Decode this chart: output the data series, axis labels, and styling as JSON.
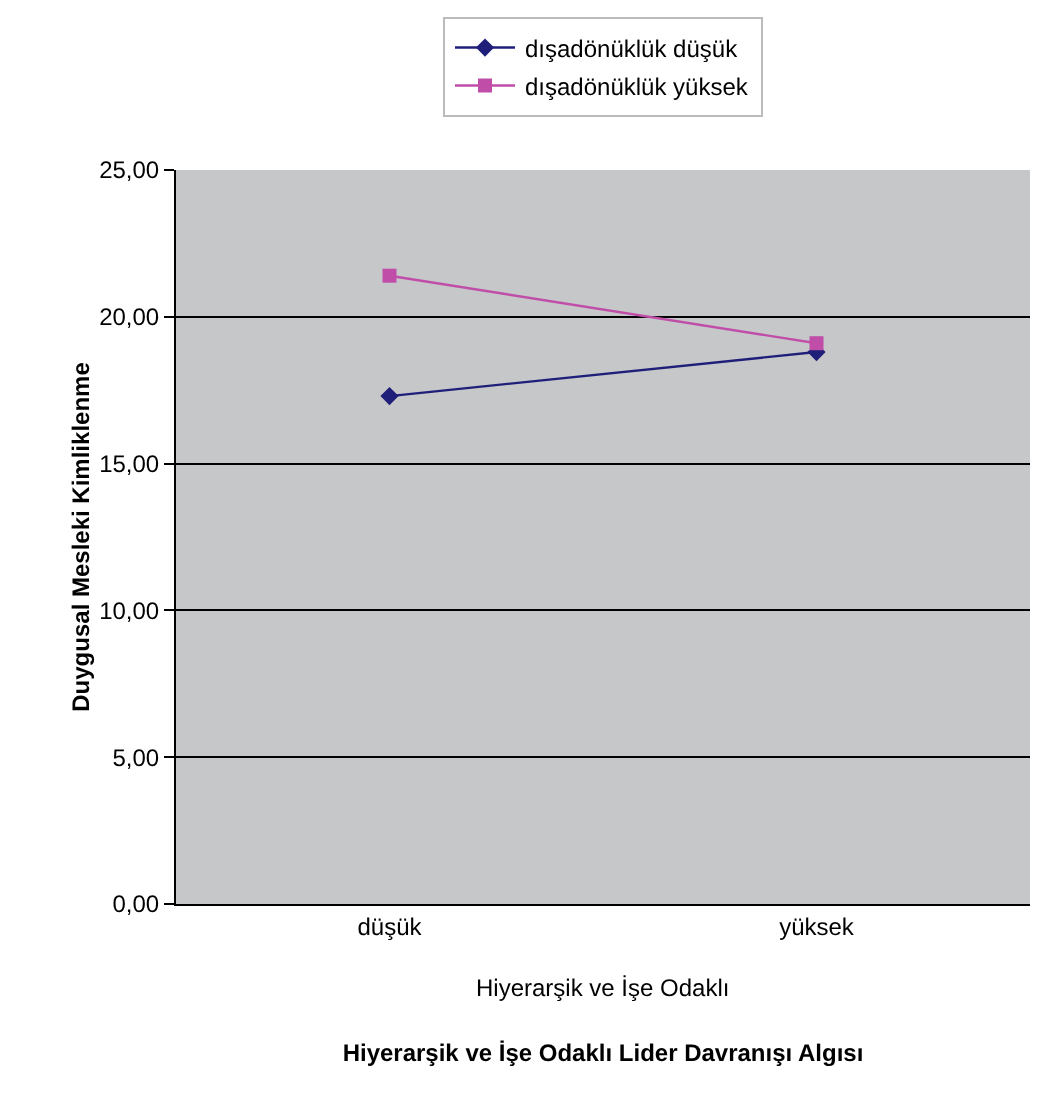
{
  "chart_data": {
    "type": "line",
    "xlabel": "Hiyerarşik ve İşe Odaklı Lider Davranışı Algısı",
    "ylabel": "Duygusal Mesleki Kimliklenme",
    "categories": [
      "düşük",
      "yüksek"
    ],
    "series": [
      {
        "name": "dışadönüklük düşük",
        "color": "#1f1f7a",
        "marker": "diamond",
        "values": [
          17.3,
          18.8
        ]
      },
      {
        "name": "dışadönüklük yüksek",
        "color": "#c04ea8",
        "marker": "square",
        "values": [
          21.4,
          19.1
        ]
      }
    ],
    "annotations": [
      "Hiyerarşik ve İşe Odaklı"
    ],
    "ylim": [
      0,
      25
    ],
    "yticks": [
      {
        "value": 0,
        "label": "0,00"
      },
      {
        "value": 5,
        "label": "5,00"
      },
      {
        "value": 10,
        "label": "10,00"
      },
      {
        "value": 15,
        "label": "15,00"
      },
      {
        "value": 20,
        "label": "20,00"
      },
      {
        "value": 25,
        "label": "25,00"
      }
    ],
    "grid": "y",
    "legend": "top",
    "line_style": "solid"
  }
}
